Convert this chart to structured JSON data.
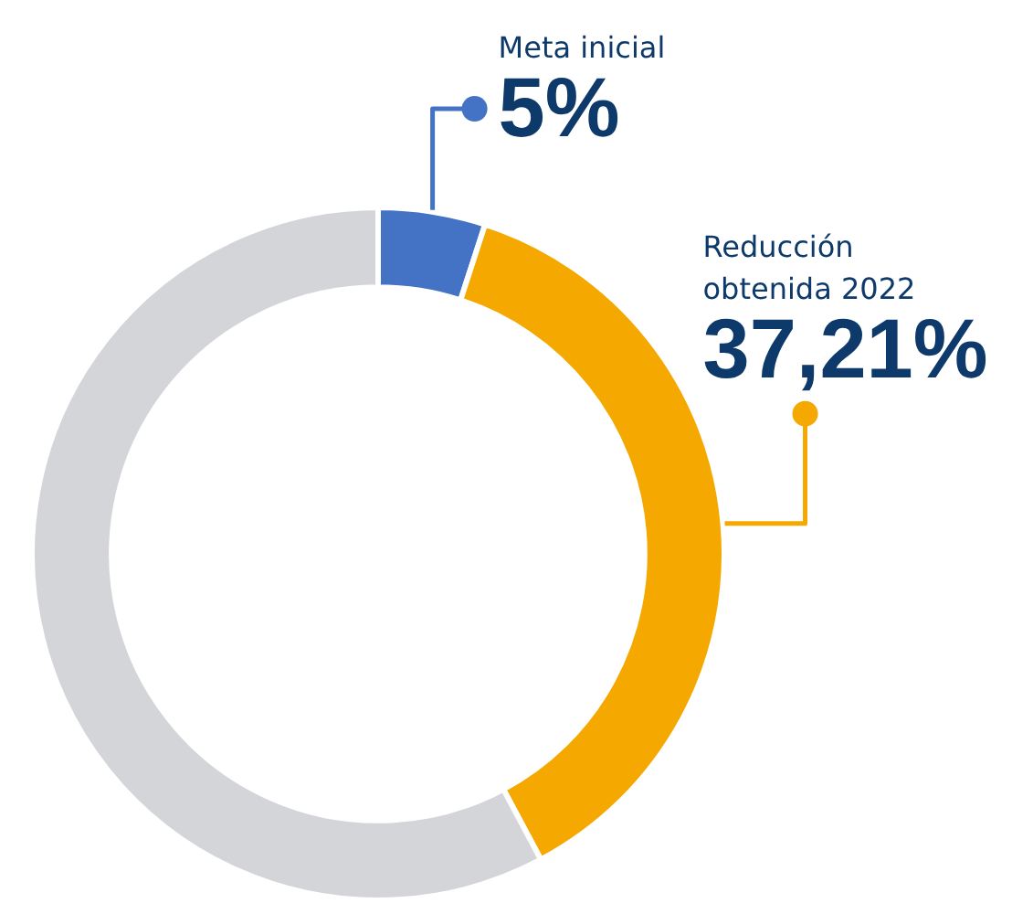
{
  "chart_data": {
    "type": "donut",
    "categories": [
      "Meta inicial",
      "Reducción obtenida 2022",
      null
    ],
    "values": [
      5,
      37.21,
      57.79
    ],
    "colors": [
      "#4472c4",
      "#f4a800",
      "#d4d5d9"
    ],
    "value_labels": [
      "5%",
      "37,21%",
      null
    ]
  }
}
